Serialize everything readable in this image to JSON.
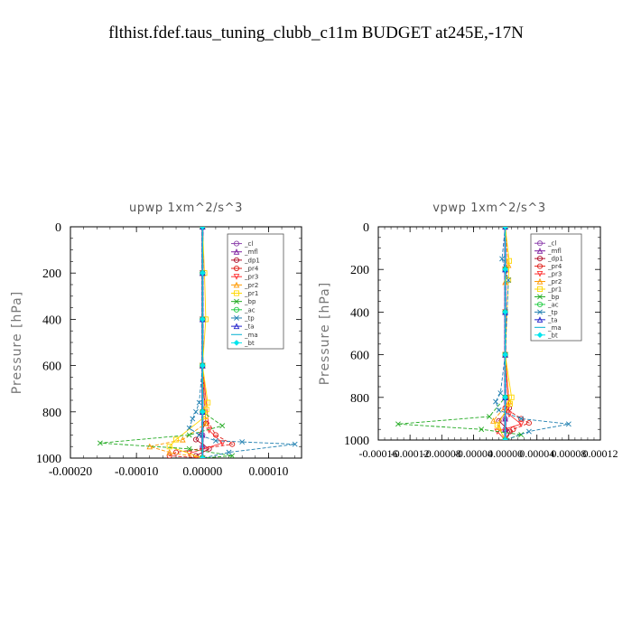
{
  "page": {
    "title": "flthist.fdef.taus_tuning_clubb_c11m  BUDGET at245E,-17N"
  },
  "chart_data": [
    {
      "type": "line",
      "title": "upwp   1xm^2/s^3",
      "ylabel": "Pressure [hPa]",
      "xlim": [
        -0.0002,
        0.00015
      ],
      "ylim": [
        1000,
        0
      ],
      "y_reversed": true,
      "xticks": [
        -0.0002,
        -0.0001,
        0.0,
        0.0001
      ],
      "xtick_labels": [
        "-0.00020",
        "-0.00010",
        "0.00000",
        "0.00010"
      ],
      "yticks": [
        0,
        200,
        400,
        600,
        800,
        1000
      ],
      "ytick_labels": [
        "0",
        "200",
        "400",
        "600",
        "800",
        "1000"
      ],
      "legend": "top-right",
      "series": [
        {
          "name": "_cl",
          "color": "#8e44ad",
          "marker": "circle",
          "x": [
            0,
            0,
            0,
            0,
            0,
            0,
            0,
            0
          ],
          "y": [
            0,
            200,
            400,
            600,
            800,
            900,
            950,
            1000
          ]
        },
        {
          "name": "_mfl",
          "color": "#7d1fa0",
          "marker": "triangle",
          "x": [
            0,
            0,
            0,
            0,
            0,
            0,
            0,
            0
          ],
          "y": [
            0,
            200,
            400,
            600,
            800,
            900,
            950,
            1000
          ]
        },
        {
          "name": "_dp1",
          "color": "#b0102a",
          "marker": "circle",
          "x": [
            0,
            0,
            0,
            0,
            5e-06,
            -1e-05,
            1e-05,
            -1e-05,
            0
          ],
          "y": [
            0,
            200,
            400,
            600,
            850,
            920,
            960,
            990,
            1000
          ]
        },
        {
          "name": "_pr4",
          "color": "#e0201a",
          "marker": "circle",
          "x": [
            0,
            0,
            0,
            0,
            0,
            2e-05,
            4.5e-05,
            -4e-05,
            -5e-05,
            0
          ],
          "y": [
            0,
            200,
            400,
            600,
            800,
            900,
            940,
            975,
            990,
            1000
          ]
        },
        {
          "name": "_pr3",
          "color": "#ff3030",
          "marker": "triangle-down",
          "x": [
            0,
            0,
            0,
            0,
            1e-05,
            3e-05,
            -2e-05,
            0
          ],
          "y": [
            0,
            200,
            400,
            600,
            880,
            935,
            980,
            1000
          ]
        },
        {
          "name": "_pr2",
          "color": "#ff9900",
          "marker": "triangle",
          "x": [
            0,
            0,
            0,
            0,
            5e-06,
            -3e-05,
            -8e-05,
            -5e-05,
            0
          ],
          "y": [
            0,
            200,
            400,
            600,
            850,
            920,
            950,
            975,
            1000
          ]
        },
        {
          "name": "_pr1",
          "color": "#ffd700",
          "marker": "square",
          "x": [
            0,
            3e-06,
            5e-06,
            0,
            8e-06,
            6e-06,
            4e-06,
            -4e-05,
            -5e-05,
            0
          ],
          "y": [
            0,
            200,
            400,
            600,
            760,
            790,
            820,
            920,
            950,
            1000
          ]
        },
        {
          "name": "_bp",
          "color": "#22aa22",
          "marker": "x",
          "x": [
            0,
            0,
            0,
            0,
            0,
            3e-05,
            -2e-05,
            -0.000155,
            -2e-05,
            4.5e-05,
            0
          ],
          "y": [
            0,
            200,
            400,
            600,
            800,
            860,
            900,
            935,
            960,
            990,
            1000
          ]
        },
        {
          "name": "_ac",
          "color": "#22cc44",
          "marker": "circle",
          "x": [
            0,
            0,
            0,
            0,
            0,
            0
          ],
          "y": [
            0,
            200,
            400,
            600,
            800,
            1000
          ]
        },
        {
          "name": "_tp",
          "color": "#1f7fb0",
          "marker": "x",
          "x": [
            0,
            0,
            0,
            0,
            -5e-06,
            -1e-05,
            -1.5e-05,
            -2e-05,
            -5e-06,
            2e-05,
            6e-05,
            0.00014,
            4e-05,
            0
          ],
          "y": [
            0,
            200,
            400,
            600,
            760,
            800,
            830,
            870,
            900,
            925,
            930,
            940,
            975,
            1000
          ]
        },
        {
          "name": "_ta",
          "color": "#2222cc",
          "marker": "triangle",
          "x": [
            0,
            0,
            0,
            0,
            0,
            0
          ],
          "y": [
            0,
            200,
            400,
            600,
            800,
            1000
          ]
        },
        {
          "name": "_ma",
          "color": "#00b0d0",
          "marker": "none",
          "x": [
            0,
            0,
            0,
            0,
            0,
            0
          ],
          "y": [
            0,
            200,
            400,
            600,
            800,
            1000
          ]
        },
        {
          "name": "_bt",
          "color": "#00e5ee",
          "marker": "diamond",
          "x": [
            0,
            0,
            0,
            0,
            0,
            0
          ],
          "y": [
            0,
            200,
            400,
            600,
            800,
            1000
          ]
        }
      ]
    },
    {
      "type": "line",
      "title": "vpwp   1xm^2/s^3",
      "ylabel": "Pressure [hPa]",
      "xlim": [
        -0.00016,
        0.00012
      ],
      "ylim": [
        1000,
        0
      ],
      "y_reversed": true,
      "xticks": [
        -0.00016,
        -0.00012,
        -8e-05,
        -4e-05,
        0.0,
        4e-05,
        8e-05,
        0.00012
      ],
      "xtick_labels": [
        "-0.00016",
        "-0.00012",
        "-0.00008",
        "-0.00004",
        "0.00000",
        "0.00004",
        "0.00008",
        "0.00012"
      ],
      "yticks": [
        0,
        200,
        400,
        600,
        800,
        1000
      ],
      "ytick_labels": [
        "0",
        "200",
        "400",
        "600",
        "800",
        "1000"
      ],
      "legend": "top-right",
      "series": [
        {
          "name": "_cl",
          "color": "#8e44ad",
          "marker": "circle",
          "x": [
            0,
            0,
            0,
            0,
            0,
            0,
            0,
            0
          ],
          "y": [
            0,
            200,
            400,
            600,
            800,
            900,
            950,
            1000
          ]
        },
        {
          "name": "_mfl",
          "color": "#7d1fa0",
          "marker": "triangle",
          "x": [
            0,
            0,
            0,
            0,
            0,
            0,
            0,
            0
          ],
          "y": [
            0,
            200,
            400,
            600,
            800,
            900,
            950,
            1000
          ]
        },
        {
          "name": "_dp1",
          "color": "#b0102a",
          "marker": "circle",
          "x": [
            0,
            0,
            0,
            0,
            5e-06,
            -8e-06,
            6e-06,
            0
          ],
          "y": [
            0,
            200,
            400,
            600,
            850,
            910,
            960,
            1000
          ]
        },
        {
          "name": "_pr4",
          "color": "#e0201a",
          "marker": "circle",
          "x": [
            0,
            0,
            0,
            0,
            0,
            2e-05,
            3e-05,
            1e-05,
            0
          ],
          "y": [
            0,
            200,
            400,
            600,
            850,
            900,
            920,
            950,
            1000
          ]
        },
        {
          "name": "_pr3",
          "color": "#ff3030",
          "marker": "triangle-down",
          "x": [
            0,
            0,
            0,
            0,
            5e-06,
            2e-05,
            -1e-05,
            0
          ],
          "y": [
            0,
            200,
            400,
            600,
            880,
            925,
            960,
            1000
          ]
        },
        {
          "name": "_pr2",
          "color": "#ff9900",
          "marker": "triangle",
          "x": [
            0,
            4e-06,
            0,
            0,
            5e-06,
            -1.5e-05,
            -8e-06,
            0
          ],
          "y": [
            0,
            180,
            260,
            600,
            820,
            910,
            940,
            1000
          ]
        },
        {
          "name": "_pr1",
          "color": "#ffd700",
          "marker": "square",
          "x": [
            0,
            5e-06,
            4e-06,
            0,
            8e-06,
            6e-06,
            -1e-05,
            0
          ],
          "y": [
            0,
            160,
            250,
            600,
            800,
            830,
            930,
            1000
          ]
        },
        {
          "name": "_bp",
          "color": "#22aa22",
          "marker": "x",
          "x": [
            0,
            0,
            0,
            0,
            0,
            -2e-05,
            -0.000135,
            -3e-05,
            2e-05,
            0
          ],
          "y": [
            0,
            200,
            400,
            600,
            800,
            890,
            925,
            950,
            975,
            1000
          ]
        },
        {
          "name": "_ac",
          "color": "#22cc44",
          "marker": "circle",
          "x": [
            0,
            0,
            0,
            0,
            0,
            0
          ],
          "y": [
            0,
            200,
            400,
            600,
            800,
            1000
          ]
        },
        {
          "name": "_tp",
          "color": "#1f7fb0",
          "marker": "x",
          "x": [
            0,
            -4e-06,
            4e-06,
            0,
            -6e-06,
            -1.2e-05,
            -8e-06,
            2e-05,
            8e-05,
            3e-05,
            0
          ],
          "y": [
            0,
            150,
            250,
            600,
            780,
            820,
            860,
            900,
            925,
            960,
            1000
          ]
        },
        {
          "name": "_ta",
          "color": "#2222cc",
          "marker": "triangle",
          "x": [
            0,
            0,
            0,
            0,
            0,
            0
          ],
          "y": [
            0,
            200,
            400,
            600,
            800,
            1000
          ]
        },
        {
          "name": "_ma",
          "color": "#00b0d0",
          "marker": "none",
          "x": [
            0,
            0,
            0,
            0,
            0,
            0
          ],
          "y": [
            0,
            200,
            400,
            600,
            800,
            1000
          ]
        },
        {
          "name": "_bt",
          "color": "#00e5ee",
          "marker": "diamond",
          "x": [
            0,
            0,
            0,
            0,
            0,
            0
          ],
          "y": [
            0,
            200,
            400,
            600,
            800,
            1000
          ]
        }
      ]
    }
  ]
}
